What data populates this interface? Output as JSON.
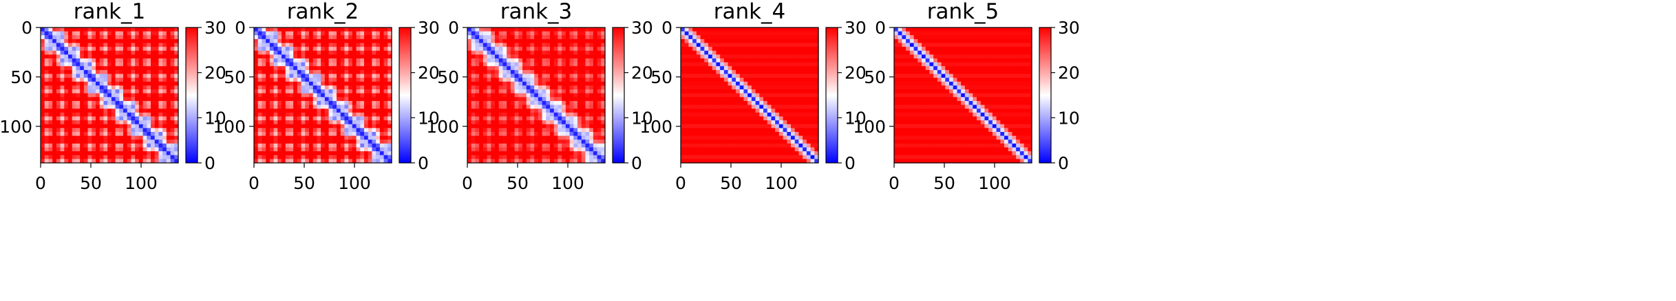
{
  "chart_data": [
    {
      "type": "heatmap",
      "title": "rank_1",
      "style": "strong-periodic",
      "x_ticks": [
        0,
        50,
        100
      ],
      "y_ticks": [
        0,
        50,
        100
      ],
      "xlim": [
        0,
        137
      ],
      "ylim": [
        137,
        0
      ],
      "colorbar": {
        "ticks": [
          0,
          10,
          20,
          30
        ],
        "range": [
          0,
          30
        ]
      },
      "colormap": [
        "#0000ff",
        "#ffffff",
        "#ff0000"
      ]
    },
    {
      "type": "heatmap",
      "title": "rank_2",
      "style": "strong-periodic",
      "x_ticks": [
        0,
        50,
        100
      ],
      "y_ticks": [
        0,
        50,
        100
      ],
      "xlim": [
        0,
        137
      ],
      "ylim": [
        137,
        0
      ],
      "colorbar": {
        "ticks": [
          0,
          10,
          20,
          30
        ],
        "range": [
          0,
          30
        ]
      },
      "colormap": [
        "#0000ff",
        "#ffffff",
        "#ff0000"
      ]
    },
    {
      "type": "heatmap",
      "title": "rank_3",
      "style": "weak-periodic",
      "x_ticks": [
        0,
        50,
        100
      ],
      "y_ticks": [
        0,
        50,
        100
      ],
      "xlim": [
        0,
        137
      ],
      "ylim": [
        137,
        0
      ],
      "colorbar": {
        "ticks": [
          0,
          10,
          20,
          30
        ],
        "range": [
          0,
          30
        ]
      },
      "colormap": [
        "#0000ff",
        "#ffffff",
        "#ff0000"
      ]
    },
    {
      "type": "heatmap",
      "title": "rank_4",
      "style": "diagonal-only",
      "x_ticks": [
        0,
        50,
        100
      ],
      "y_ticks": [
        0,
        50,
        100
      ],
      "xlim": [
        0,
        137
      ],
      "ylim": [
        137,
        0
      ],
      "colorbar": {
        "ticks": [
          0,
          10,
          20,
          30
        ],
        "range": [
          0,
          30
        ]
      },
      "colormap": [
        "#0000ff",
        "#ffffff",
        "#ff0000"
      ]
    },
    {
      "type": "heatmap",
      "title": "rank_5",
      "style": "diagonal-only",
      "x_ticks": [
        0,
        50,
        100
      ],
      "y_ticks": [
        0,
        50,
        100
      ],
      "xlim": [
        0,
        137
      ],
      "ylim": [
        137,
        0
      ],
      "colorbar": {
        "ticks": [
          0,
          10,
          20,
          30
        ],
        "range": [
          0,
          30
        ]
      },
      "colormap": [
        "#0000ff",
        "#ffffff",
        "#ff0000"
      ]
    }
  ]
}
